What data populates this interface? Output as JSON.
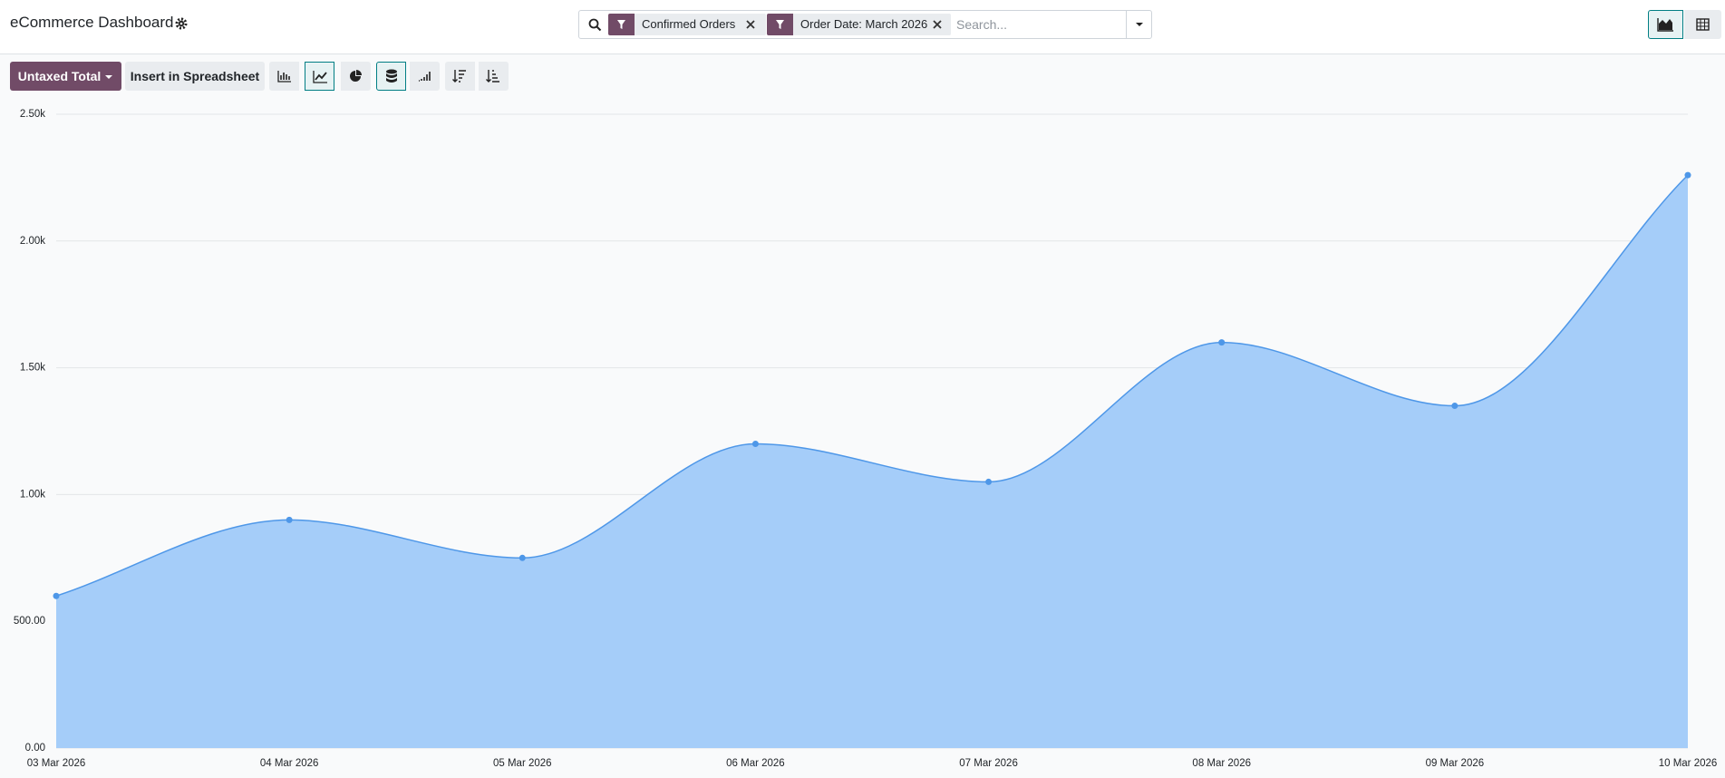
{
  "header": {
    "title": "eCommerce Dashboard",
    "facets": [
      "Confirmed Orders",
      "Order Date: March 2026"
    ],
    "search_placeholder": "Search..."
  },
  "toolbar": {
    "measure": "Untaxed Total",
    "insert": "Insert in Spreadsheet"
  },
  "chart_data": {
    "type": "area",
    "categories": [
      "03 Mar 2026",
      "04 Mar 2026",
      "05 Mar 2026",
      "06 Mar 2026",
      "07 Mar 2026",
      "08 Mar 2026",
      "09 Mar 2026",
      "10 Mar 2026"
    ],
    "values": [
      600,
      900,
      750,
      1200,
      1050,
      1600,
      1350,
      2260
    ],
    "color": "#4e97e8",
    "fill": "#a5cdf9",
    "ylim": [
      0,
      2500
    ],
    "yticks": [
      {
        "value": 0,
        "label": "0.00"
      },
      {
        "value": 500,
        "label": "500.00"
      },
      {
        "value": 1000,
        "label": "1.00k"
      },
      {
        "value": 1500,
        "label": "1.50k"
      },
      {
        "value": 2000,
        "label": "2.00k"
      },
      {
        "value": 2500,
        "label": "2.50k"
      }
    ],
    "grid": true
  }
}
